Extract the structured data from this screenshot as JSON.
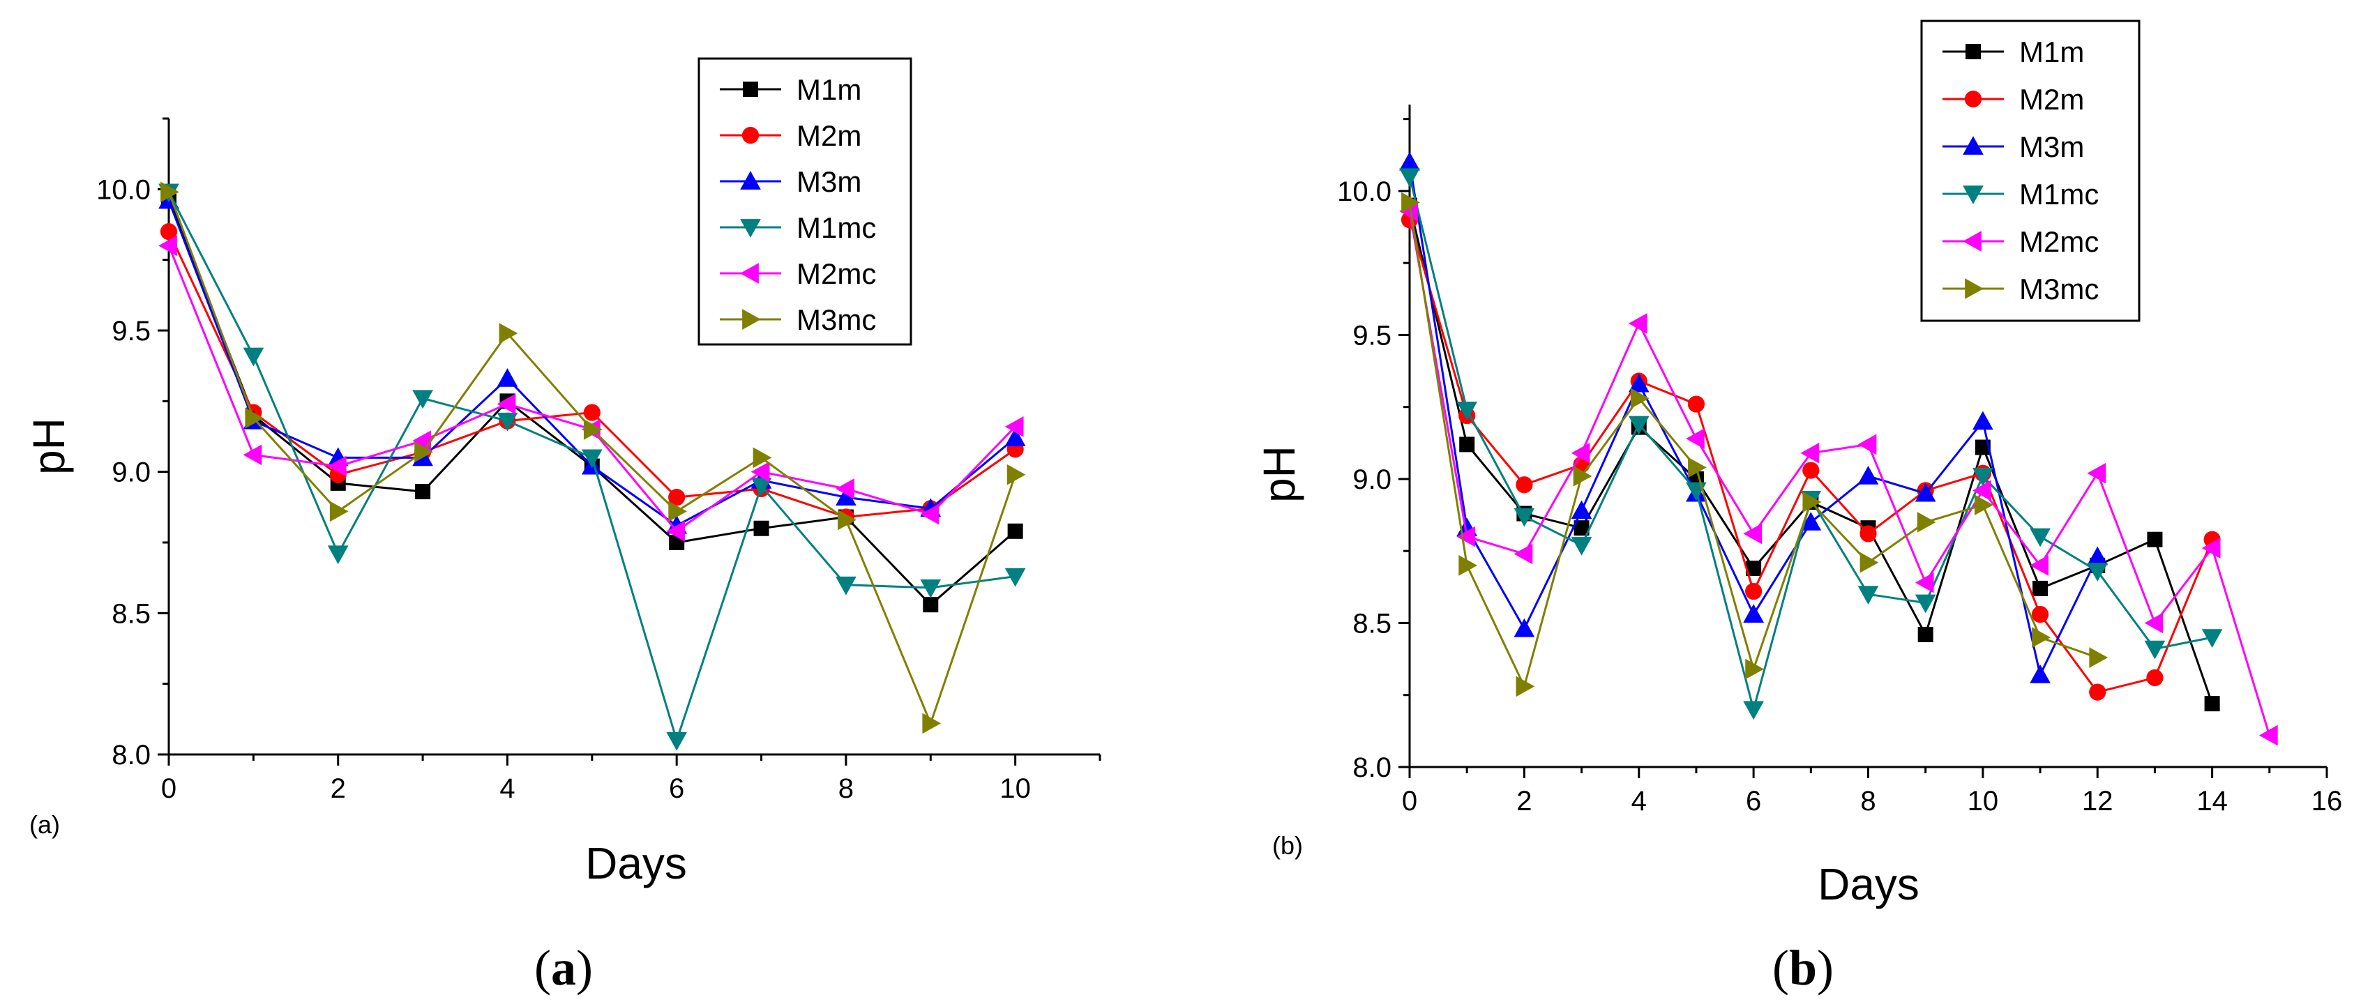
{
  "chart_data": [
    {
      "id": "a",
      "type": "line",
      "panel_tag": "(a)",
      "caption_open": "(",
      "caption_letter": "a",
      "caption_close": ")",
      "xlabel": "Days",
      "ylabel": "pH",
      "xlim": [
        0,
        11
      ],
      "ylim": [
        8.0,
        10.25
      ],
      "xticks": [
        0,
        2,
        4,
        6,
        8,
        10
      ],
      "xtick_labels": [
        "0",
        "2",
        "4",
        "6",
        "8",
        "10"
      ],
      "yticks": [
        8.0,
        8.5,
        9.0,
        9.5,
        10.0
      ],
      "ytick_labels": [
        "8.0",
        "8.5",
        "9.0",
        "9.5",
        "10.0"
      ],
      "legend_position": "top-right",
      "series": [
        {
          "name": "M1m",
          "color": "#000000",
          "marker": "square",
          "x": [
            0,
            1,
            2,
            3,
            4,
            5,
            6,
            7,
            8,
            9,
            10
          ],
          "y": [
            9.97,
            9.2,
            8.96,
            8.93,
            9.25,
            9.02,
            8.75,
            8.8,
            8.84,
            8.53,
            8.79
          ]
        },
        {
          "name": "M2m",
          "color": "#ff0000",
          "marker": "circle",
          "x": [
            0,
            1,
            2,
            3,
            4,
            5,
            6,
            7,
            8,
            9,
            10
          ],
          "y": [
            9.85,
            9.21,
            8.99,
            9.07,
            9.18,
            9.21,
            8.91,
            8.94,
            8.84,
            8.87,
            9.08
          ]
        },
        {
          "name": "M3m",
          "color": "#0000ff",
          "marker": "triangle-up",
          "x": [
            0,
            1,
            2,
            3,
            4,
            5,
            6,
            7,
            8,
            9,
            10
          ],
          "y": [
            9.96,
            9.18,
            9.05,
            9.05,
            9.33,
            9.02,
            8.81,
            8.97,
            8.91,
            8.87,
            9.12
          ]
        },
        {
          "name": "M1mc",
          "color": "#008080",
          "marker": "triangle-down",
          "x": [
            0,
            1,
            2,
            3,
            4,
            5,
            6,
            7,
            8,
            9,
            10
          ],
          "y": [
            9.99,
            9.41,
            8.71,
            9.26,
            9.18,
            9.05,
            8.05,
            8.95,
            8.6,
            8.59,
            8.63
          ]
        },
        {
          "name": "M2mc",
          "color": "#ff00ff",
          "marker": "triangle-left",
          "x": [
            0,
            1,
            2,
            3,
            4,
            5,
            6,
            7,
            8,
            9,
            10
          ],
          "y": [
            9.8,
            9.06,
            9.02,
            9.11,
            9.24,
            9.15,
            8.79,
            9.0,
            8.94,
            8.85,
            9.16
          ]
        },
        {
          "name": "M3mc",
          "color": "#808000",
          "marker": "triangle-right",
          "x": [
            0,
            1,
            2,
            3,
            4,
            5,
            6,
            7,
            8,
            9,
            10
          ],
          "y": [
            9.99,
            9.19,
            8.86,
            9.07,
            9.49,
            9.15,
            8.86,
            9.05,
            8.83,
            8.11,
            8.99
          ]
        }
      ]
    },
    {
      "id": "b",
      "type": "line",
      "panel_tag": "(b)",
      "caption_open": "(",
      "caption_letter": "b",
      "caption_close": ")",
      "xlabel": "Days",
      "ylabel": "pH",
      "xlim": [
        0,
        16
      ],
      "ylim": [
        8.0,
        10.3
      ],
      "xticks": [
        0,
        2,
        4,
        6,
        8,
        10,
        12,
        14,
        16
      ],
      "xtick_labels": [
        "0",
        "2",
        "4",
        "6",
        "8",
        "10",
        "12",
        "14",
        "16"
      ],
      "yticks": [
        8.0,
        8.5,
        9.0,
        9.5,
        10.0
      ],
      "ytick_labels": [
        "8.0",
        "8.5",
        "9.0",
        "9.5",
        "10.0"
      ],
      "legend_position": "top-right",
      "series": [
        {
          "name": "M1m",
          "color": "#000000",
          "marker": "square",
          "x": [
            0,
            1,
            2,
            3,
            4,
            5,
            6,
            7,
            8,
            9,
            10,
            11,
            12,
            13,
            14
          ],
          "y": [
            9.95,
            9.12,
            8.88,
            8.83,
            9.18,
            9.0,
            8.69,
            8.92,
            8.83,
            8.46,
            9.11,
            8.62,
            8.7,
            8.79,
            8.22
          ]
        },
        {
          "name": "M2m",
          "color": "#ff0000",
          "marker": "circle",
          "x": [
            0,
            1,
            2,
            3,
            4,
            5,
            6,
            7,
            8,
            9,
            10,
            11,
            12,
            13,
            14
          ],
          "y": [
            9.9,
            9.22,
            8.98,
            9.05,
            9.34,
            9.26,
            8.61,
            9.03,
            8.81,
            8.96,
            9.02,
            8.53,
            8.26,
            8.31,
            8.79
          ]
        },
        {
          "name": "M3m",
          "color": "#0000ff",
          "marker": "triangle-up",
          "x": [
            0,
            1,
            2,
            3,
            4,
            5,
            6,
            7,
            8,
            9,
            10,
            11,
            12
          ],
          "y": [
            10.1,
            8.83,
            8.48,
            8.89,
            9.33,
            8.95,
            8.53,
            8.85,
            9.01,
            8.95,
            9.2,
            8.32,
            8.73
          ]
        },
        {
          "name": "M1mc",
          "color": "#008080",
          "marker": "triangle-down",
          "x": [
            0,
            1,
            2,
            3,
            4,
            5,
            6,
            7,
            8,
            9,
            10,
            11,
            12,
            13,
            14
          ],
          "y": [
            10.05,
            9.24,
            8.87,
            8.77,
            9.19,
            8.96,
            8.2,
            8.93,
            8.6,
            8.57,
            9.01,
            8.8,
            8.68,
            8.41,
            8.45
          ]
        },
        {
          "name": "M2mc",
          "color": "#ff00ff",
          "marker": "triangle-left",
          "x": [
            0,
            1,
            2,
            3,
            4,
            5,
            6,
            7,
            8,
            9,
            10,
            11,
            12,
            13,
            14,
            15
          ],
          "y": [
            9.93,
            8.8,
            8.74,
            9.09,
            9.54,
            9.14,
            8.81,
            9.09,
            9.12,
            8.64,
            8.96,
            8.7,
            9.02,
            8.5,
            8.76,
            8.11
          ]
        },
        {
          "name": "M3mc",
          "color": "#808000",
          "marker": "triangle-right",
          "x": [
            0,
            1,
            2,
            3,
            4,
            5,
            6,
            7,
            8,
            9,
            10,
            11,
            12
          ],
          "y": [
            9.96,
            8.7,
            8.28,
            9.01,
            9.28,
            9.04,
            8.34,
            8.92,
            8.71,
            8.85,
            8.91,
            8.45,
            8.38
          ]
        }
      ]
    }
  ]
}
